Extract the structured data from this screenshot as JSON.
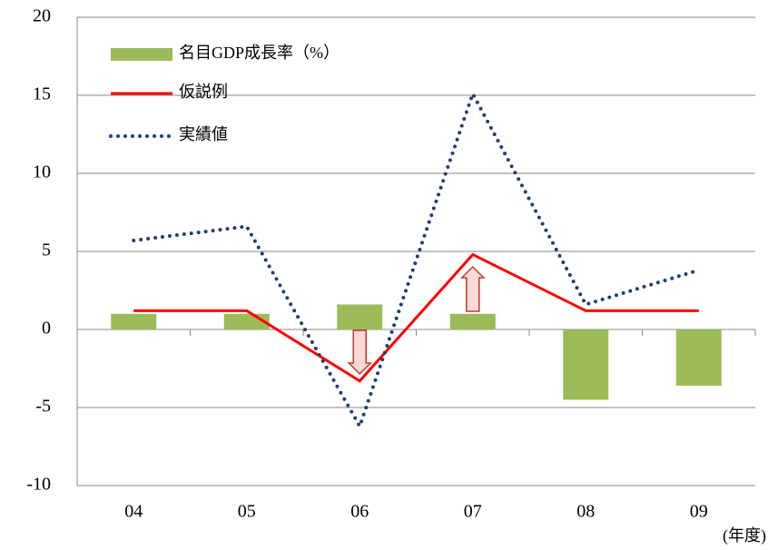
{
  "chart_data": {
    "type": "bar-line",
    "categories": [
      "04",
      "05",
      "06",
      "07",
      "08",
      "09"
    ],
    "series": [
      {
        "name": "名目GDP成長率（%）",
        "type": "bar",
        "color": "#9bbb59",
        "values": [
          1.0,
          1.0,
          1.6,
          1.0,
          -4.5,
          -3.6
        ]
      },
      {
        "name": "仮説例",
        "type": "line",
        "style": "solid",
        "color": "#ff0000",
        "values": [
          1.2,
          1.2,
          -3.3,
          4.8,
          1.2,
          1.2
        ]
      },
      {
        "name": "実績値",
        "type": "line",
        "style": "dotted",
        "color": "#1f3f73",
        "values": [
          5.7,
          6.6,
          -6.2,
          15.1,
          1.6,
          3.8
        ]
      }
    ],
    "x_unit": "(年度)",
    "ylim": [
      -10,
      20
    ],
    "yticks": [
      -10,
      -5,
      0,
      5,
      10,
      15,
      20
    ],
    "grid": true
  }
}
